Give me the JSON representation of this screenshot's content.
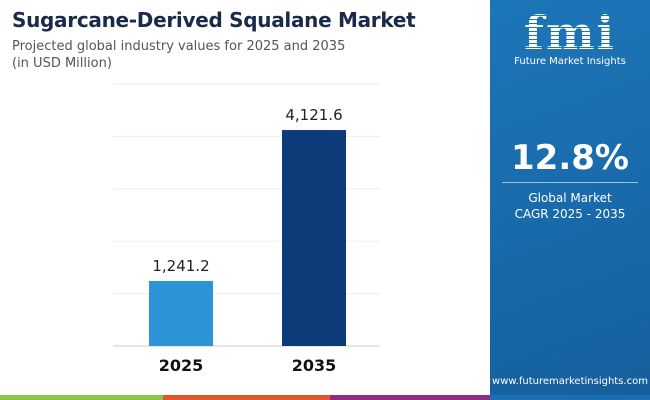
{
  "header": {
    "title": "Sugarcane-Derived Squalane Market",
    "subtitle": "Projected global industry values for 2025 and 2035",
    "unit": "(in USD Million)"
  },
  "chart_data": {
    "type": "bar",
    "categories": [
      "2025",
      "2035"
    ],
    "values": [
      1241.2,
      4121.6
    ],
    "value_labels": [
      "1,241.2",
      "4,121.6"
    ],
    "ylim": [
      0,
      5000
    ],
    "grid": true,
    "colors": [
      "#2e94d8",
      "#0d3a78"
    ]
  },
  "panel": {
    "logo": "fmi",
    "brand": "Future Market Insights",
    "cagr": "12.8%",
    "cagr_label_1": "Global Market",
    "cagr_label_2": "CAGR 2025 - 2035",
    "url": "www.futuremarketinsights.com"
  },
  "stripe_colors": [
    "#8bc34a",
    "#e4572e",
    "#8e2c86",
    "#1a6fb0"
  ]
}
